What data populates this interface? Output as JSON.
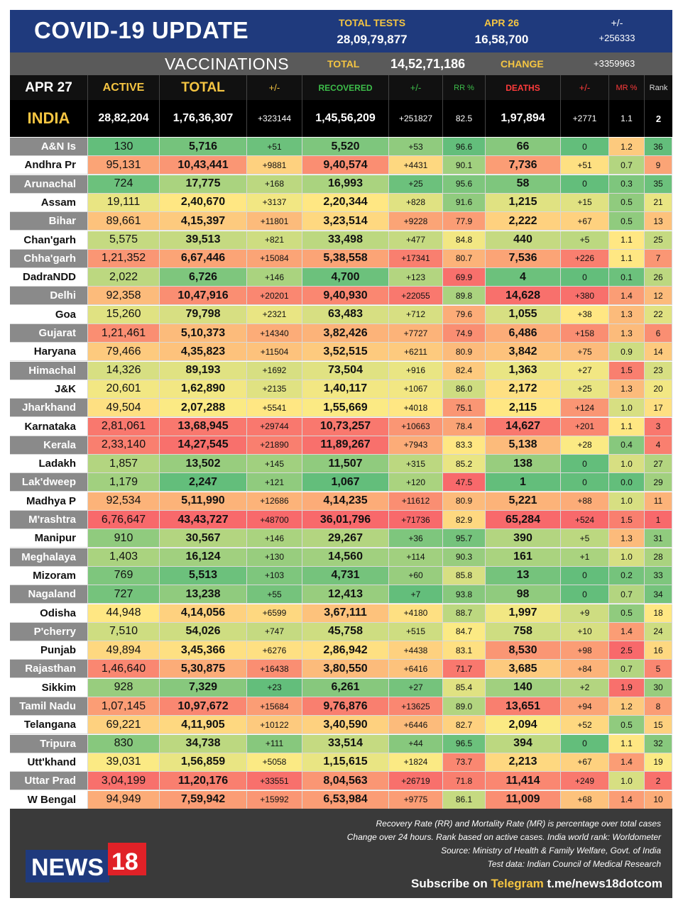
{
  "header": {
    "title": "COVID-19 UPDATE",
    "total_tests_label": "TOTAL TESTS",
    "total_tests_value": "28,09,79,877",
    "date_label": "APR 26",
    "date_value": "16,58,700",
    "change_label": "+/-",
    "change_value": "+256333"
  },
  "vaccinations": {
    "label": "VACCINATIONS",
    "total_label": "TOTAL",
    "total_value": "14,52,71,186",
    "change_label": "CHANGE",
    "change_value": "+3359963"
  },
  "columns": {
    "date": "APR 27",
    "active": "ACTIVE",
    "total": "TOTAL",
    "total_change": "+/-",
    "recovered": "RECOVERED",
    "rec_change": "+/-",
    "rr": "RR %",
    "deaths": "DEATHS",
    "death_change": "+/-",
    "mr": "MR %",
    "rank": "Rank"
  },
  "india": {
    "name": "INDIA",
    "active": "28,82,204",
    "total": "1,76,36,307",
    "total_change": "+323144",
    "recovered": "1,45,56,209",
    "rec_change": "+251827",
    "rr": "82.5",
    "deaths": "1,97,894",
    "death_change": "+2771",
    "mr": "1.1",
    "rank": "2"
  },
  "rows": [
    [
      "A&N Is",
      "130",
      "5,716",
      "+51",
      "5,520",
      "+53",
      "96.6",
      "66",
      "0",
      "1.2",
      "36"
    ],
    [
      "Andhra Pr",
      "95,131",
      "10,43,441",
      "+9881",
      "9,40,574",
      "+4431",
      "90.1",
      "7,736",
      "+51",
      "0.7",
      "9"
    ],
    [
      "Arunachal",
      "724",
      "17,775",
      "+168",
      "16,993",
      "+25",
      "95.6",
      "58",
      "0",
      "0.3",
      "35"
    ],
    [
      "Assam",
      "19,111",
      "2,40,670",
      "+3137",
      "2,20,344",
      "+828",
      "91.6",
      "1,215",
      "+15",
      "0.5",
      "21"
    ],
    [
      "Bihar",
      "89,661",
      "4,15,397",
      "+11801",
      "3,23,514",
      "+9228",
      "77.9",
      "2,222",
      "+67",
      "0.5",
      "13"
    ],
    [
      "Chan'garh",
      "5,575",
      "39,513",
      "+821",
      "33,498",
      "+477",
      "84.8",
      "440",
      "+5",
      "1.1",
      "25"
    ],
    [
      "Chha'garh",
      "1,21,352",
      "6,67,446",
      "+15084",
      "5,38,558",
      "+17341",
      "80.7",
      "7,536",
      "+226",
      "1.1",
      "7"
    ],
    [
      "DadraNDD",
      "2,022",
      "6,726",
      "+146",
      "4,700",
      "+123",
      "69.9",
      "4",
      "0",
      "0.1",
      "26"
    ],
    [
      "Delhi",
      "92,358",
      "10,47,916",
      "+20201",
      "9,40,930",
      "+22055",
      "89.8",
      "14,628",
      "+380",
      "1.4",
      "12"
    ],
    [
      "Goa",
      "15,260",
      "79,798",
      "+2321",
      "63,483",
      "+712",
      "79.6",
      "1,055",
      "+38",
      "1.3",
      "22"
    ],
    [
      "Gujarat",
      "1,21,461",
      "5,10,373",
      "+14340",
      "3,82,426",
      "+7727",
      "74.9",
      "6,486",
      "+158",
      "1.3",
      "6"
    ],
    [
      "Haryana",
      "79,466",
      "4,35,823",
      "+11504",
      "3,52,515",
      "+6211",
      "80.9",
      "3,842",
      "+75",
      "0.9",
      "14"
    ],
    [
      "Himachal",
      "14,326",
      "89,193",
      "+1692",
      "73,504",
      "+916",
      "82.4",
      "1,363",
      "+27",
      "1.5",
      "23"
    ],
    [
      "J&K",
      "20,601",
      "1,62,890",
      "+2135",
      "1,40,117",
      "+1067",
      "86.0",
      "2,172",
      "+25",
      "1.3",
      "20"
    ],
    [
      "Jharkhand",
      "49,504",
      "2,07,288",
      "+5541",
      "1,55,669",
      "+4018",
      "75.1",
      "2,115",
      "+124",
      "1.0",
      "17"
    ],
    [
      "Karnataka",
      "2,81,061",
      "13,68,945",
      "+29744",
      "10,73,257",
      "+10663",
      "78.4",
      "14,627",
      "+201",
      "1.1",
      "3"
    ],
    [
      "Kerala",
      "2,33,140",
      "14,27,545",
      "+21890",
      "11,89,267",
      "+7943",
      "83.3",
      "5,138",
      "+28",
      "0.4",
      "4"
    ],
    [
      "Ladakh",
      "1,857",
      "13,502",
      "+145",
      "11,507",
      "+315",
      "85.2",
      "138",
      "0",
      "1.0",
      "27"
    ],
    [
      "Lak'dweep",
      "1,179",
      "2,247",
      "+121",
      "1,067",
      "+120",
      "47.5",
      "1",
      "0",
      "0.0",
      "29"
    ],
    [
      "Madhya P",
      "92,534",
      "5,11,990",
      "+12686",
      "4,14,235",
      "+11612",
      "80.9",
      "5,221",
      "+88",
      "1.0",
      "11"
    ],
    [
      "M'rashtra",
      "6,76,647",
      "43,43,727",
      "+48700",
      "36,01,796",
      "+71736",
      "82.9",
      "65,284",
      "+524",
      "1.5",
      "1"
    ],
    [
      "Manipur",
      "910",
      "30,567",
      "+146",
      "29,267",
      "+36",
      "95.7",
      "390",
      "+5",
      "1.3",
      "31"
    ],
    [
      "Meghalaya",
      "1,403",
      "16,124",
      "+130",
      "14,560",
      "+114",
      "90.3",
      "161",
      "+1",
      "1.0",
      "28"
    ],
    [
      "Mizoram",
      "769",
      "5,513",
      "+103",
      "4,731",
      "+60",
      "85.8",
      "13",
      "0",
      "0.2",
      "33"
    ],
    [
      "Nagaland",
      "727",
      "13,238",
      "+55",
      "12,413",
      "+7",
      "93.8",
      "98",
      "0",
      "0.7",
      "34"
    ],
    [
      "Odisha",
      "44,948",
      "4,14,056",
      "+6599",
      "3,67,111",
      "+4180",
      "88.7",
      "1,997",
      "+9",
      "0.5",
      "18"
    ],
    [
      "P'cherry",
      "7,510",
      "54,026",
      "+747",
      "45,758",
      "+515",
      "84.7",
      "758",
      "+10",
      "1.4",
      "24"
    ],
    [
      "Punjab",
      "49,894",
      "3,45,366",
      "+6276",
      "2,86,942",
      "+4438",
      "83.1",
      "8,530",
      "+98",
      "2.5",
      "16"
    ],
    [
      "Rajasthan",
      "1,46,640",
      "5,30,875",
      "+16438",
      "3,80,550",
      "+6416",
      "71.7",
      "3,685",
      "+84",
      "0.7",
      "5"
    ],
    [
      "Sikkim",
      "928",
      "7,329",
      "+23",
      "6,261",
      "+27",
      "85.4",
      "140",
      "+2",
      "1.9",
      "30"
    ],
    [
      "Tamil Nadu",
      "1,07,145",
      "10,97,672",
      "+15684",
      "9,76,876",
      "+13625",
      "89.0",
      "13,651",
      "+94",
      "1.2",
      "8"
    ],
    [
      "Telangana",
      "69,221",
      "4,11,905",
      "+10122",
      "3,40,590",
      "+6446",
      "82.7",
      "2,094",
      "+52",
      "0.5",
      "15"
    ],
    [
      "Tripura",
      "830",
      "34,738",
      "+111",
      "33,514",
      "+44",
      "96.5",
      "394",
      "0",
      "1.1",
      "32"
    ],
    [
      "Utt'khand",
      "39,031",
      "1,56,859",
      "+5058",
      "1,15,615",
      "+1824",
      "73.7",
      "2,213",
      "+67",
      "1.4",
      "19"
    ],
    [
      "Uttar Prad",
      "3,04,199",
      "11,20,176",
      "+33551",
      "8,04,563",
      "+26719",
      "71.8",
      "11,414",
      "+249",
      "1.0",
      "2"
    ],
    [
      "W Bengal",
      "94,949",
      "7,59,942",
      "+15992",
      "6,53,984",
      "+9775",
      "86.1",
      "11,009",
      "+68",
      "1.4",
      "10"
    ]
  ],
  "footer": {
    "notes": [
      "Recovery Rate (RR) and Mortality Rate (MR) is percentage over total cases",
      "Change over 24 hours. Rank based on active cases. India world rank: Worldometer",
      "Source: Ministry of Health & Family Welfare, Govt. of India",
      "Test data: Indian Council of Medical Research"
    ],
    "subscribe_prefix": "Subscribe on",
    "subscribe_channel": "Telegram",
    "subscribe_link": "t.me/news18dotcom",
    "logo_text": "NEWS",
    "logo_number": "18"
  },
  "colors": {
    "header_bg": "#1f3a7d",
    "accent_yellow": "#f5c542",
    "green_strong": "#63be7b",
    "yellow": "#ffeb84",
    "red_strong": "#f8696b"
  }
}
